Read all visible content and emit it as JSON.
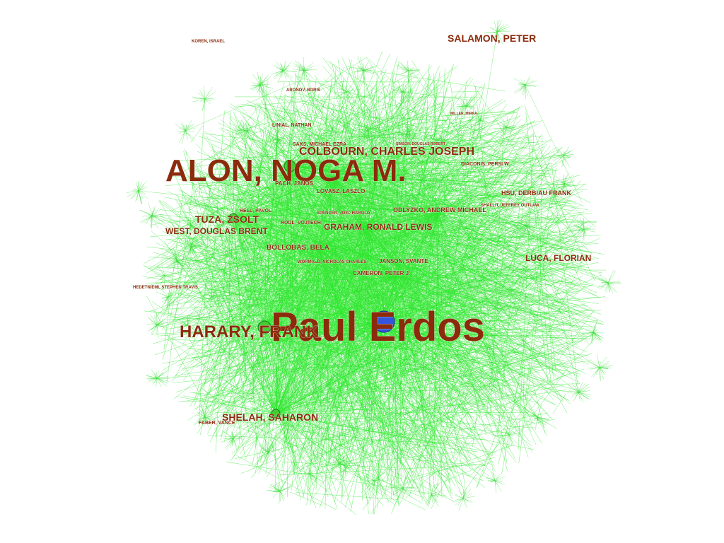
{
  "graph": {
    "type": "collaboration-network",
    "colors": {
      "edge": "#22dd22",
      "label": "#8b2b0c",
      "center_node": "#3355dd",
      "node": "#33cc33"
    },
    "nodes": [
      {
        "name": "Paul Erdos",
        "weight": 10
      },
      {
        "name": "ALON, NOGA M.",
        "weight": 7
      },
      {
        "name": "HARARY, FRANK",
        "weight": 4
      },
      {
        "name": "COLBOURN, CHARLES JOSEPH",
        "weight": 3
      },
      {
        "name": "SALAMON, PETER",
        "weight": 3
      },
      {
        "name": "SHELAH, SAHARON",
        "weight": 3
      },
      {
        "name": "TUZA, ZSOLT",
        "weight": 3
      },
      {
        "name": "WEST, DOUGLAS BRENT",
        "weight": 2.5
      },
      {
        "name": "GRAHAM, RONALD LEWIS",
        "weight": 2.5
      },
      {
        "name": "LUCA, FLORIAN",
        "weight": 2.5
      },
      {
        "name": "BOLLOBAS, BELA",
        "weight": 2
      },
      {
        "name": "ODLYZKO, ANDREW MICHAEL",
        "weight": 2
      },
      {
        "name": "HSU, DERBIAU FRANK",
        "weight": 2
      },
      {
        "name": "CAMERON, PETER J.",
        "weight": 1.5
      },
      {
        "name": "JANSON, SVANTE",
        "weight": 1.5
      },
      {
        "name": "LOVASZ, LASZLO",
        "weight": 1.5
      },
      {
        "name": "PACH, JANOS",
        "weight": 1.5
      },
      {
        "name": "LINIAL, NATHAN",
        "weight": 1.5
      },
      {
        "name": "SAKS, MICHAEL EZRA",
        "weight": 1.5
      },
      {
        "name": "DIACONIS, PERSI W.",
        "weight": 1.5
      },
      {
        "name": "SHALLIT, JEFFREY OUTLAW",
        "weight": 1.5
      },
      {
        "name": "KOREN, ISRAEL",
        "weight": 1.5
      },
      {
        "name": "FABER, VANCE",
        "weight": 1.5
      },
      {
        "name": "HELL, PAVOL",
        "weight": 1.5
      },
      {
        "name": "ARONOV, BORIS",
        "weight": 1
      },
      {
        "name": "HEDETNIEMI, STEPHEN TRAVIS",
        "weight": 1
      },
      {
        "name": "RODL, VOJTECH",
        "weight": 1
      },
      {
        "name": "SPENCER, JOEL HAROLD",
        "weight": 1
      },
      {
        "name": "WORMALD, NICHOLAS CHARLES",
        "weight": 1
      },
      {
        "name": "SIMSON, DOUGLAS ROBERT",
        "weight": 1
      },
      {
        "name": "MILLER, MIRKA",
        "weight": 1
      }
    ]
  }
}
